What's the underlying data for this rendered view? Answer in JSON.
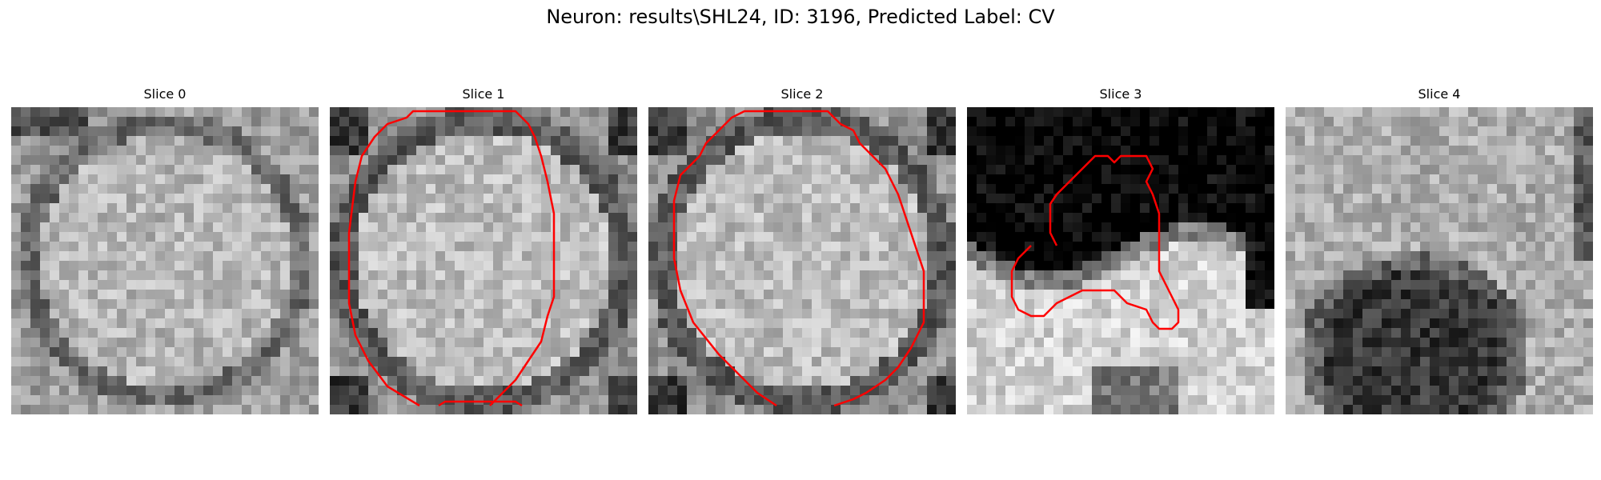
{
  "figure": {
    "title": "Neuron: results\\SHL24, ID: 3196, Predicted Label: CV"
  },
  "panels": [
    {
      "title": "Slice 0",
      "image": "grayscale-em-slice-cell-body",
      "has_contour": false
    },
    {
      "title": "Slice 1",
      "image": "grayscale-em-slice-cell-body",
      "has_contour": true
    },
    {
      "title": "Slice 2",
      "image": "grayscale-em-slice-cell-body",
      "has_contour": true
    },
    {
      "title": "Slice 3",
      "image": "grayscale-em-slice-dark-top-bright-bottom",
      "has_contour": true
    },
    {
      "title": "Slice 4",
      "image": "grayscale-em-slice-dark-nucleus-bottom",
      "has_contour": false
    }
  ],
  "colors": {
    "contour": "#ff0000",
    "title_text": "#000000"
  }
}
